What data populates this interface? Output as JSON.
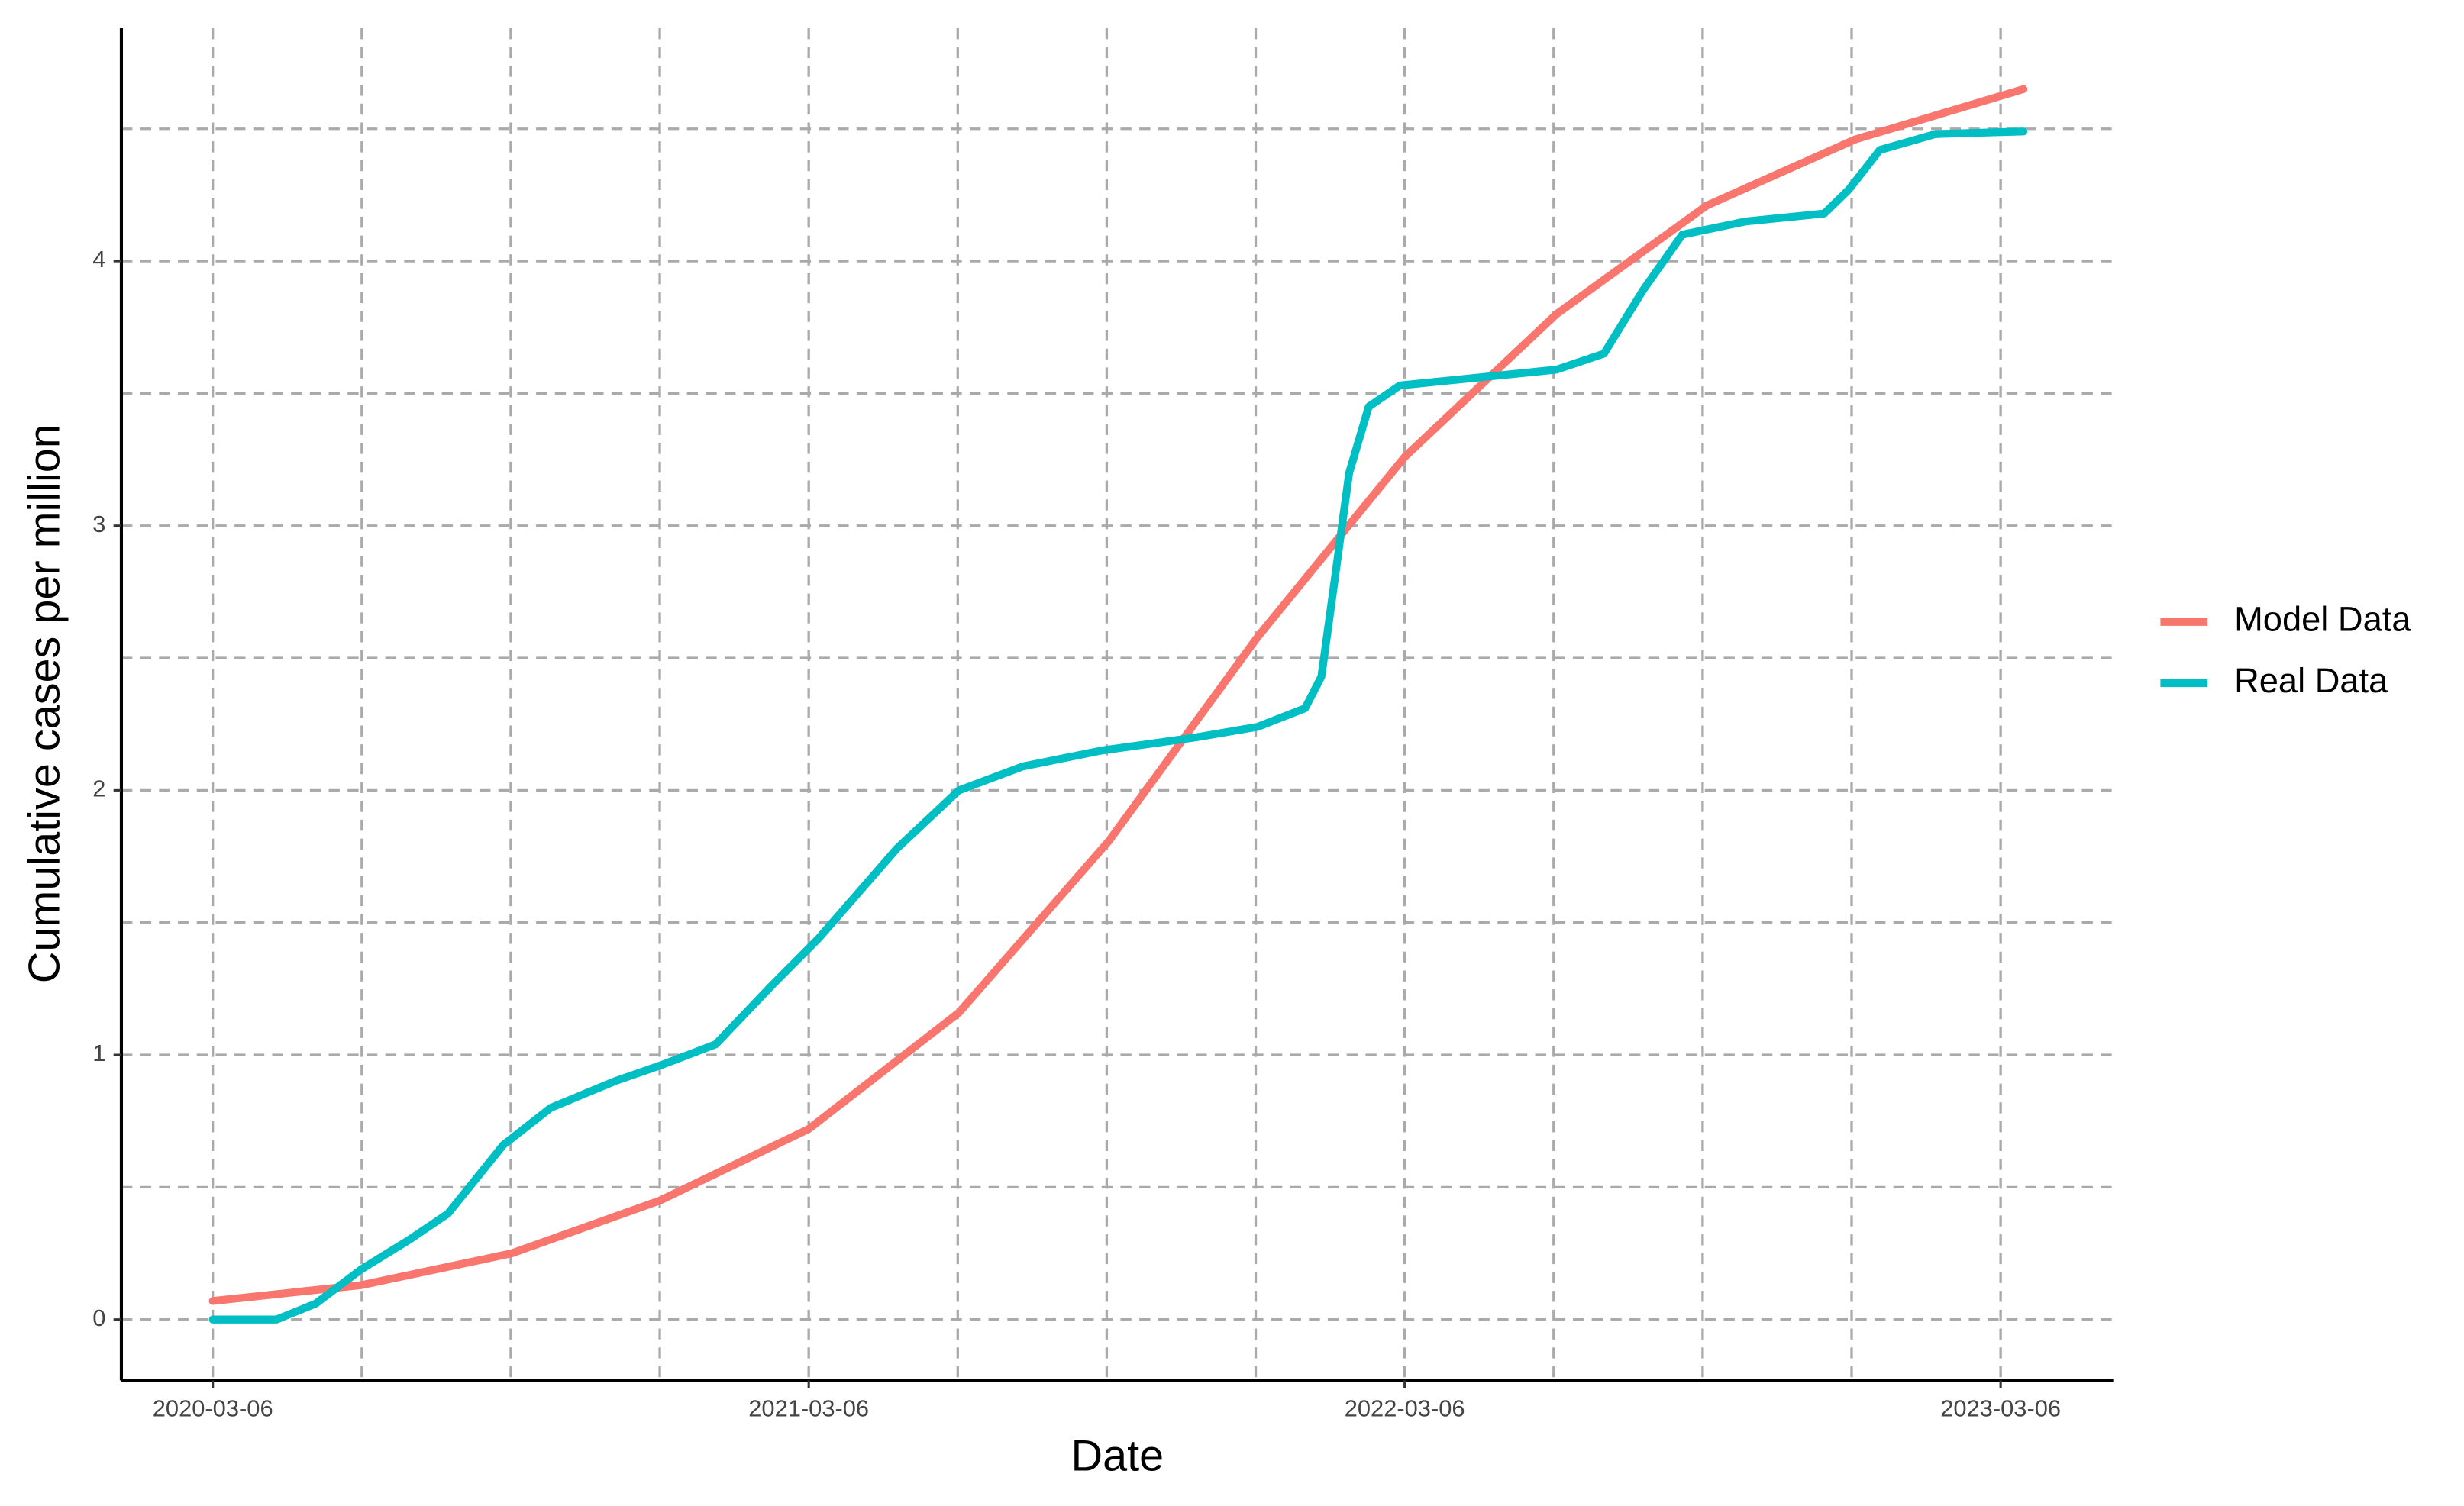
{
  "chart_data": {
    "type": "line",
    "x_label": "Date",
    "y_label": "Cumulative cases per million",
    "xlim": [
      "2020-01-10",
      "2023-05-14"
    ],
    "xticks": [
      "2020-03-06",
      "2021-03-06",
      "2022-03-06",
      "2023-03-06"
    ],
    "ylim": [
      -0.23,
      4.88
    ],
    "yticks": [
      0,
      1,
      2,
      3,
      4
    ],
    "grid": true,
    "legend": "right",
    "series": [
      {
        "name": "Model Data",
        "color": "#F8766D",
        "x": [
          "2020-03-06",
          "2020-06-05",
          "2020-09-05",
          "2020-12-05",
          "2021-03-06",
          "2021-06-06",
          "2021-09-06",
          "2021-12-06",
          "2022-03-06",
          "2022-06-07",
          "2022-09-07",
          "2022-12-07",
          "2023-03-20"
        ],
        "values": [
          0.07,
          0.13,
          0.25,
          0.45,
          0.72,
          1.16,
          1.81,
          2.58,
          3.26,
          3.8,
          4.21,
          4.46,
          4.65
        ]
      },
      {
        "name": "Real Data",
        "color": "#00BFC4",
        "x": [
          "2020-03-06",
          "2020-04-14",
          "2020-05-08",
          "2020-06-05",
          "2020-07-04",
          "2020-07-28",
          "2020-08-31",
          "2020-09-29",
          "2020-11-07",
          "2020-12-05",
          "2021-01-08",
          "2021-02-11",
          "2021-03-12",
          "2021-04-29",
          "2021-06-06",
          "2021-07-15",
          "2021-09-01",
          "2021-10-29",
          "2021-12-06",
          "2022-01-04",
          "2022-01-14",
          "2022-01-22",
          "2022-01-31",
          "2022-02-12",
          "2022-03-03",
          "2022-04-20",
          "2022-06-07",
          "2022-07-06",
          "2022-07-30",
          "2022-08-23",
          "2022-10-01",
          "2022-11-18",
          "2022-12-03",
          "2022-12-22",
          "2023-01-25",
          "2023-03-20"
        ],
        "values": [
          0,
          0,
          0.06,
          0.19,
          0.3,
          0.4,
          0.66,
          0.8,
          0.9,
          0.96,
          1.04,
          1.26,
          1.44,
          1.78,
          2.0,
          2.09,
          2.15,
          2.2,
          2.24,
          2.31,
          2.43,
          2.79,
          3.2,
          3.45,
          3.53,
          3.56,
          3.59,
          3.65,
          3.89,
          4.1,
          4.15,
          4.18,
          4.27,
          4.42,
          4.48,
          4.49
        ]
      }
    ]
  }
}
